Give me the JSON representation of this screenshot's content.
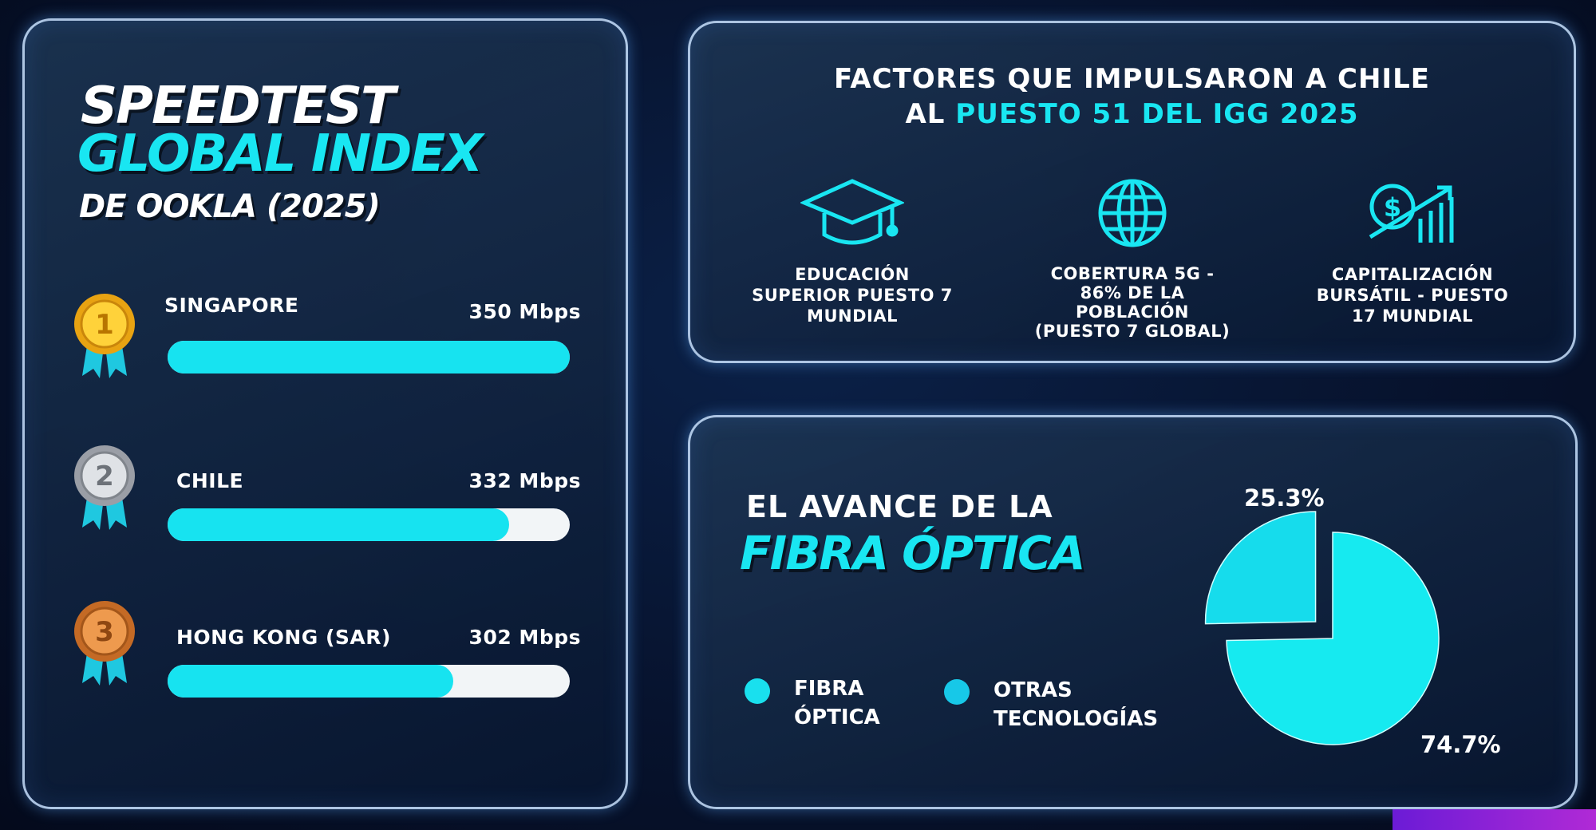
{
  "left_panel": {
    "title_line1": "SPEEDTEST",
    "title_line2": "GLOBAL INDEX",
    "title_line3": "DE OOKLA (2025)",
    "ranking": [
      {
        "rank": "1",
        "medal": "gold-medal-icon",
        "country": "SINGAPORE",
        "speed": "350 Mbps",
        "fill": 1.0
      },
      {
        "rank": "2",
        "medal": "silver-medal-icon",
        "country": "CHILE",
        "speed": "332 Mbps",
        "fill": 0.85
      },
      {
        "rank": "3",
        "medal": "bronze-medal-icon",
        "country": "HONG KONG (SAR)",
        "speed": "302 Mbps",
        "fill": 0.71
      }
    ]
  },
  "factors_panel": {
    "title_line1": "FACTORES QUE IMPULSARON A CHILE",
    "title_line2_prefix": "AL ",
    "title_line2_highlight": "PUESTO 51 DEL IGG 2025",
    "factors": [
      {
        "icon": "graduation-cap-icon",
        "lines": [
          "EDUCACIÓN",
          "SUPERIOR PUESTO 7",
          "MUNDIAL"
        ]
      },
      {
        "icon": "globe-icon",
        "lines": [
          "COBERTURA 5G -",
          "86% DE LA",
          "POBLACIÓN",
          "(PUESTO 7 GLOBAL)"
        ]
      },
      {
        "icon": "money-growth-chart-icon",
        "lines": [
          "CAPITALIZACIÓN",
          "BURSÁTIL - PUESTO",
          "17 MUNDIAL"
        ]
      }
    ]
  },
  "colors": {
    "accent": "#19e6f2",
    "background": "#07132e"
  },
  "chart_data": {
    "type": "pie",
    "title_line1": "EL AVANCE DE LA",
    "title_line2": "FIBRA ÓPTICA",
    "slices": [
      {
        "name": "FIBRA ÓPTICA",
        "value": 74.7,
        "label": "74.7%"
      },
      {
        "name": "OTRAS TECNOLOGÍAS",
        "value": 25.3,
        "label": "25.3%",
        "exploded": true
      }
    ],
    "legend": [
      {
        "line1": "FIBRA",
        "line2": "ÓPTICA"
      },
      {
        "line1": "OTRAS",
        "line2": "TECNOLOGÍAS"
      }
    ],
    "legend_placement": "bottom-left"
  }
}
